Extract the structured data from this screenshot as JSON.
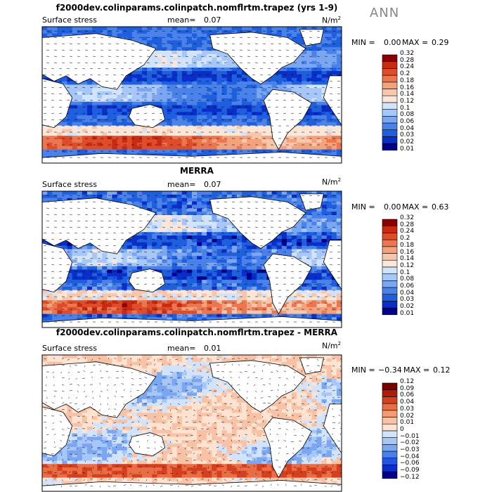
{
  "season": "ANN",
  "units_base": "N/m",
  "units_exp": "2",
  "colors": {
    "ocean_blue": [
      "#08306b",
      "#08519c",
      "#2171b5",
      "#4292c6",
      "#6baed6",
      "#9ecae1",
      "#c6dbef"
    ],
    "seq_scale": [
      "#00008b",
      "#0a2fc8",
      "#1e5fe0",
      "#4a82ec",
      "#7aa6f2",
      "#a6c7f7",
      "#d2e4fb",
      "#fbe6d8",
      "#f8c7ab",
      "#f3a27c",
      "#ec7650",
      "#df4c2a",
      "#c82a12",
      "#8b0000"
    ],
    "diff_scale": [
      "#00008b",
      "#0a2fc8",
      "#2455e0",
      "#4a7fec",
      "#7aa6f2",
      "#a6c7f7",
      "#d2e4fb",
      "#fde3d2",
      "#f7c2a6",
      "#f39b73",
      "#e96d45",
      "#d4401f",
      "#b01a0a",
      "#7a0000"
    ],
    "land": "#ffffff"
  },
  "panels": [
    {
      "title": "f2000dev.colinparams.colinpatch.nomflrtm.trapez (yrs 1-9)",
      "variable": "Surface stress",
      "mean_label": "mean=",
      "mean_value": "0.07",
      "min_label": "MIN =",
      "min_value": "0.00",
      "max_label": "MAX =",
      "max_value": "0.29"
    },
    {
      "title": "MERRA",
      "variable": "Surface stress",
      "mean_label": "mean=",
      "mean_value": "0.07",
      "min_label": "MIN =",
      "min_value": "0.00",
      "max_label": "MAX =",
      "max_value": "0.63"
    },
    {
      "title": "f2000dev.colinparams.colinpatch.nomflrtm.trapez - MERRA",
      "variable": "Surface stress",
      "mean_label": "mean=",
      "mean_value": "0.01",
      "min_label": "MIN =",
      "min_value": "−0.34",
      "max_label": "MAX =",
      "max_value": "0.12"
    }
  ],
  "chart_data": [
    {
      "type": "heatmap",
      "title": "f2000dev.colinparams.colinpatch.nomflrtm.trapez (yrs 1-9)",
      "variable": "Surface stress",
      "units": "N/m2",
      "mean": 0.07,
      "min": 0.0,
      "max": 0.29,
      "colorbar_levels": [
        "0.01",
        "0.02",
        "0.03",
        "0.04",
        "0.06",
        "0.08",
        "0.1",
        "0.12",
        "0.14",
        "0.16",
        "0.18",
        "0.2",
        "0.24",
        "0.28",
        "0.32"
      ]
    },
    {
      "type": "heatmap",
      "title": "MERRA",
      "variable": "Surface stress",
      "units": "N/m2",
      "mean": 0.07,
      "min": 0.0,
      "max": 0.63,
      "colorbar_levels": [
        "0.01",
        "0.02",
        "0.03",
        "0.04",
        "0.06",
        "0.08",
        "0.1",
        "0.12",
        "0.14",
        "0.16",
        "0.18",
        "0.2",
        "0.24",
        "0.28",
        "0.32"
      ]
    },
    {
      "type": "heatmap",
      "title": "f2000dev.colinparams.colinpatch.nomflrtm.trapez - MERRA",
      "variable": "Surface stress",
      "units": "N/m2",
      "mean": 0.01,
      "min": -0.34,
      "max": 0.12,
      "colorbar_levels": [
        "−0.12",
        "−0.09",
        "−0.06",
        "−0.04",
        "−0.03",
        "−0.02",
        "−0.01",
        "0",
        "0.01",
        "0.02",
        "0.03",
        "0.04",
        "0.06",
        "0.09",
        "0.12"
      ]
    }
  ]
}
